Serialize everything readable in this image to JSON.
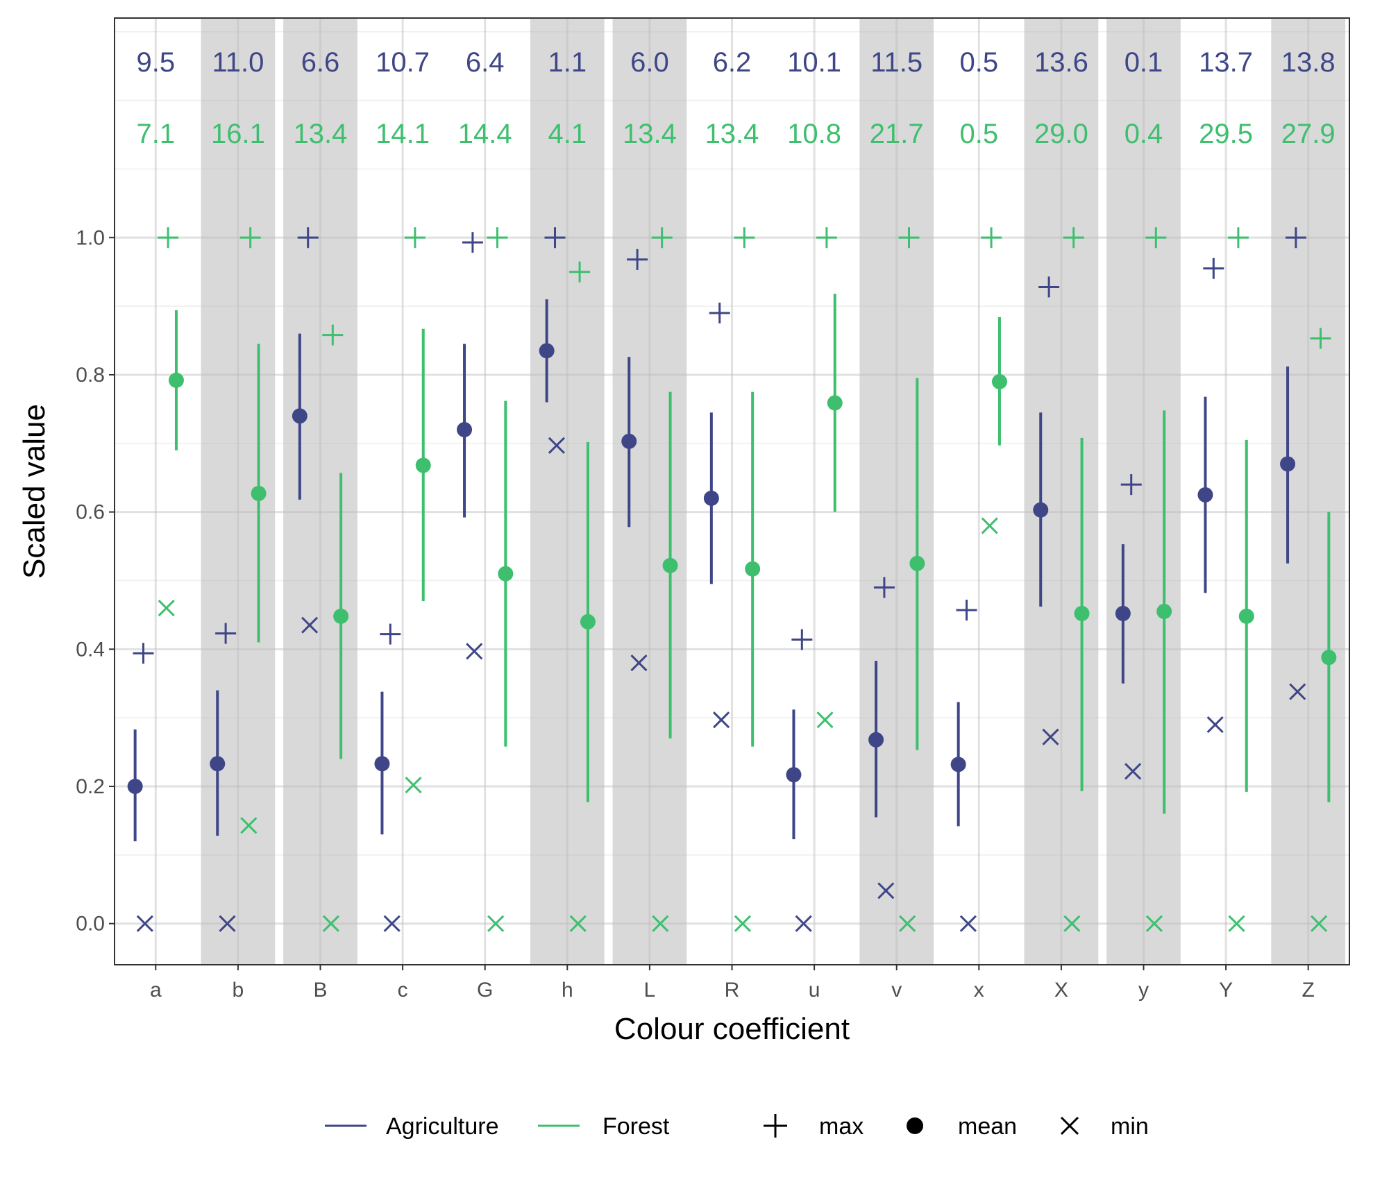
{
  "chart_data": {
    "type": "scatter",
    "xlabel": "Colour coefficient",
    "ylabel": "Scaled value",
    "ylim": [
      -0.06,
      1.32
    ],
    "yticks": [
      "0.0",
      "0.2",
      "0.4",
      "0.6",
      "0.8",
      "1.0"
    ],
    "categories": [
      "a",
      "b",
      "B",
      "c",
      "G",
      "h",
      "L",
      "R",
      "u",
      "v",
      "x",
      "X",
      "y",
      "Y",
      "Z"
    ],
    "shaded_categories": [
      "b",
      "B",
      "h",
      "L",
      "v",
      "X",
      "y",
      "Z"
    ],
    "grid": true,
    "legend_position": "bottom",
    "series": [
      {
        "name": "Agriculture",
        "color": "#3e4687",
        "top_labels": [
          "9.5",
          "11.0",
          "6.6",
          "10.7",
          "6.4",
          "1.1",
          "6.0",
          "6.2",
          "10.1",
          "11.5",
          "0.5",
          "13.6",
          "0.1",
          "13.7",
          "13.8"
        ],
        "mean": [
          0.2,
          0.233,
          0.74,
          0.233,
          0.72,
          0.835,
          0.703,
          0.62,
          0.217,
          0.268,
          0.232,
          0.603,
          0.452,
          0.625,
          0.67
        ],
        "lower": [
          0.12,
          0.128,
          0.618,
          0.13,
          0.592,
          0.76,
          0.578,
          0.495,
          0.123,
          0.155,
          0.142,
          0.462,
          0.35,
          0.482,
          0.525
        ],
        "upper": [
          0.283,
          0.34,
          0.86,
          0.338,
          0.845,
          0.91,
          0.826,
          0.745,
          0.312,
          0.383,
          0.323,
          0.745,
          0.553,
          0.768,
          0.812
        ],
        "max": [
          0.394,
          0.423,
          1.0,
          0.422,
          0.993,
          1.0,
          0.968,
          0.89,
          0.414,
          0.49,
          0.457,
          0.928,
          0.64,
          0.955,
          1.0
        ],
        "min": [
          0.0,
          0.0,
          0.435,
          0.0,
          0.397,
          0.697,
          0.38,
          0.297,
          0.0,
          0.048,
          0.0,
          0.272,
          0.222,
          0.29,
          0.338
        ]
      },
      {
        "name": "Forest",
        "color": "#3dbf6e",
        "top_labels": [
          "7.1",
          "16.1",
          "13.4",
          "14.1",
          "14.4",
          "4.1",
          "13.4",
          "13.4",
          "10.8",
          "21.7",
          "0.5",
          "29.0",
          "0.4",
          "29.5",
          "27.9"
        ],
        "mean": [
          0.792,
          0.627,
          0.448,
          0.668,
          0.51,
          0.44,
          0.522,
          0.517,
          0.759,
          0.525,
          0.79,
          0.452,
          0.455,
          0.448,
          0.388
        ],
        "lower": [
          0.69,
          0.41,
          0.24,
          0.47,
          0.258,
          0.177,
          0.27,
          0.258,
          0.6,
          0.253,
          0.697,
          0.193,
          0.16,
          0.192,
          0.177
        ],
        "upper": [
          0.894,
          0.845,
          0.657,
          0.867,
          0.762,
          0.702,
          0.775,
          0.775,
          0.918,
          0.795,
          0.884,
          0.708,
          0.748,
          0.705,
          0.6
        ],
        "max": [
          1.0,
          1.0,
          0.858,
          1.0,
          1.0,
          0.95,
          1.0,
          1.0,
          1.0,
          1.0,
          1.0,
          1.0,
          1.0,
          1.0,
          0.853
        ],
        "min": [
          0.46,
          0.143,
          0.0,
          0.202,
          0.0,
          0.0,
          0.0,
          0.0,
          0.297,
          0.0,
          0.58,
          0.0,
          0.0,
          0.0,
          0.0
        ]
      }
    ],
    "legend": {
      "series": [
        "Agriculture",
        "Forest"
      ],
      "shapes": [
        "max",
        "mean",
        "min"
      ]
    }
  }
}
